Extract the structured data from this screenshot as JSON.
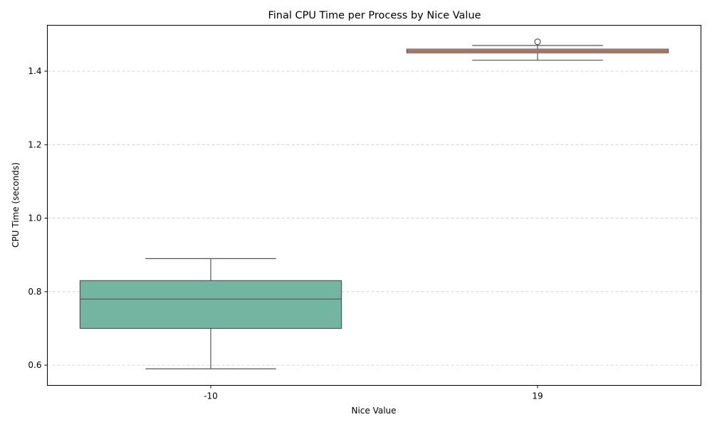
{
  "chart_data": {
    "type": "box",
    "title": "Final CPU Time per Process by Nice Value",
    "xlabel": "Nice Value",
    "ylabel": "CPU Time (seconds)",
    "ylim": [
      0.545,
      1.525
    ],
    "yticks": [
      "0.6",
      "0.8",
      "1.0",
      "1.2",
      "1.4"
    ],
    "grid": "y-axis dashed",
    "categories": [
      "-10",
      "19"
    ],
    "boxes": [
      {
        "category": "-10",
        "color": "#72b6a1",
        "whisker_low": 0.59,
        "q1": 0.7,
        "median": 0.78,
        "q3": 0.83,
        "whisker_high": 0.89,
        "outliers": []
      },
      {
        "category": "19",
        "color": "#e99675",
        "whisker_low": 1.43,
        "q1": 1.45,
        "median": 1.455,
        "q3": 1.46,
        "whisker_high": 1.47,
        "outliers": [
          1.48
        ]
      }
    ]
  }
}
